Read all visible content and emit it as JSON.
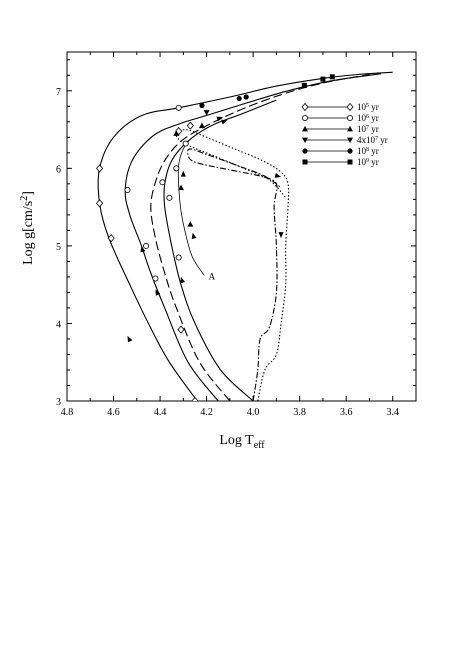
{
  "chart_data": {
    "type": "line",
    "title": "",
    "xlabel": "Log T",
    "xlabel_sub": "eff",
    "ylabel": "Log g[cm/s",
    "ylabel_sup": "2",
    "ylabel_end": "]",
    "xlim": [
      4.8,
      3.3
    ],
    "ylim": [
      3.0,
      7.5
    ],
    "xticks": [
      4.8,
      4.6,
      4.4,
      4.2,
      4.0,
      3.8,
      3.6,
      3.4
    ],
    "xtick_labels": [
      "4.8",
      "4.6",
      "4.4",
      "4.2",
      "4.0",
      "3.8",
      "3.6",
      "3.4"
    ],
    "yticks": [
      3,
      4,
      5,
      6,
      7
    ],
    "ytick_labels": [
      "3",
      "4",
      "5",
      "6",
      "7"
    ],
    "legend_position": "top-right",
    "legend": [
      {
        "base": "10",
        "sup": "5",
        "unit": " yr",
        "marker": "diamond-open"
      },
      {
        "base": "10",
        "sup": "6",
        "unit": " yr",
        "marker": "circle-open"
      },
      {
        "base": "10",
        "sup": "7",
        "unit": " yr",
        "marker": "triangle-up"
      },
      {
        "base": "4x10",
        "sup": "7",
        "unit": " yr",
        "marker": "triangle-down"
      },
      {
        "base": "10",
        "sup": "8",
        "unit": " yr",
        "marker": "circle-filled"
      },
      {
        "base": "10",
        "sup": "9",
        "unit": " yr",
        "marker": "square-filled"
      }
    ],
    "annotations": [
      {
        "text": "A",
        "x": 4.2,
        "y": 4.62
      }
    ],
    "series": [
      {
        "style": "solid",
        "points": [
          [
            4.24,
            3.0
          ],
          [
            4.36,
            3.5
          ],
          [
            4.45,
            4.0
          ],
          [
            4.53,
            4.5
          ],
          [
            4.62,
            5.1
          ],
          [
            4.66,
            5.55
          ],
          [
            4.66,
            6.0
          ],
          [
            4.6,
            6.4
          ],
          [
            4.48,
            6.68
          ],
          [
            4.32,
            6.78
          ],
          [
            4.1,
            6.92
          ],
          [
            3.9,
            7.06
          ],
          [
            3.7,
            7.16
          ],
          [
            3.55,
            7.21
          ],
          [
            3.4,
            7.24
          ]
        ]
      },
      {
        "style": "solid",
        "points": [
          [
            4.15,
            3.0
          ],
          [
            4.28,
            3.5
          ],
          [
            4.38,
            4.2
          ],
          [
            4.44,
            4.65
          ],
          [
            4.48,
            5.0
          ],
          [
            4.53,
            5.4
          ],
          [
            4.55,
            5.72
          ],
          [
            4.52,
            6.1
          ],
          [
            4.43,
            6.42
          ],
          [
            4.32,
            6.57
          ],
          [
            4.18,
            6.7
          ],
          [
            4.02,
            6.85
          ],
          [
            3.85,
            7.0
          ],
          [
            3.66,
            7.13
          ],
          [
            3.45,
            7.22
          ]
        ]
      },
      {
        "style": "long-dash",
        "points": [
          [
            4.1,
            3.0
          ],
          [
            4.23,
            3.5
          ],
          [
            4.33,
            4.2
          ],
          [
            4.38,
            4.65
          ],
          [
            4.42,
            5.1
          ],
          [
            4.44,
            5.5
          ],
          [
            4.42,
            5.82
          ],
          [
            4.38,
            6.1
          ],
          [
            4.31,
            6.35
          ],
          [
            4.2,
            6.55
          ],
          [
            4.05,
            6.76
          ],
          [
            3.88,
            6.95
          ],
          [
            3.7,
            7.1
          ],
          [
            3.5,
            7.21
          ]
        ]
      },
      {
        "style": "solid",
        "points": [
          [
            4.0,
            3.0
          ],
          [
            4.14,
            3.4
          ],
          [
            4.25,
            4.0
          ],
          [
            4.31,
            4.5
          ],
          [
            4.35,
            5.0
          ],
          [
            4.38,
            5.5
          ],
          [
            4.38,
            5.8
          ],
          [
            4.35,
            6.1
          ],
          [
            4.28,
            6.35
          ],
          [
            4.18,
            6.55
          ],
          [
            4.05,
            6.7
          ],
          [
            3.9,
            6.88
          ]
        ]
      },
      {
        "style": "dash-dot",
        "points": [
          [
            4.0,
            3.0
          ],
          [
            3.98,
            3.4
          ],
          [
            3.97,
            3.8
          ],
          [
            3.93,
            3.95
          ],
          [
            3.9,
            4.4
          ],
          [
            3.9,
            5.0
          ],
          [
            3.91,
            5.5
          ],
          [
            3.9,
            5.8
          ],
          [
            3.97,
            5.9
          ],
          [
            4.1,
            5.98
          ],
          [
            4.25,
            6.08
          ],
          [
            4.28,
            6.18
          ],
          [
            4.27,
            6.25
          ],
          [
            4.2,
            6.18
          ],
          [
            4.08,
            6.05
          ],
          [
            3.95,
            5.9
          ],
          [
            3.88,
            5.75
          ]
        ]
      },
      {
        "style": "dotted",
        "points": [
          [
            3.98,
            3.0
          ],
          [
            3.95,
            3.4
          ],
          [
            3.9,
            3.6
          ],
          [
            3.88,
            4.0
          ],
          [
            3.86,
            4.5
          ],
          [
            3.86,
            5.0
          ],
          [
            3.85,
            5.5
          ],
          [
            3.85,
            5.8
          ],
          [
            3.88,
            5.95
          ],
          [
            3.96,
            6.1
          ],
          [
            4.08,
            6.25
          ],
          [
            4.2,
            6.4
          ],
          [
            4.29,
            6.5
          ],
          [
            4.33,
            6.42
          ],
          [
            4.28,
            6.3
          ],
          [
            4.16,
            6.15
          ],
          [
            4.04,
            6.0
          ],
          [
            3.93,
            5.85
          ],
          [
            3.86,
            5.62
          ]
        ]
      },
      {
        "style": "solid-thin",
        "points": [
          [
            4.21,
            4.62
          ],
          [
            4.26,
            4.85
          ],
          [
            4.29,
            5.15
          ],
          [
            4.31,
            5.45
          ],
          [
            4.32,
            5.78
          ],
          [
            4.32,
            6.05
          ],
          [
            4.3,
            6.25
          ],
          [
            4.27,
            6.38
          ]
        ]
      }
    ],
    "markers": [
      {
        "type": "diamond-open",
        "points": [
          [
            4.66,
            6.0
          ],
          [
            4.66,
            5.55
          ],
          [
            4.61,
            5.1
          ],
          [
            4.27,
            6.55
          ],
          [
            4.32,
            6.48
          ],
          [
            4.25,
            3.0
          ],
          [
            4.31,
            3.92
          ]
        ]
      },
      {
        "type": "circle-open",
        "points": [
          [
            4.54,
            5.72
          ],
          [
            4.46,
            5.0
          ],
          [
            4.42,
            4.58
          ],
          [
            4.39,
            5.82
          ],
          [
            4.36,
            5.62
          ],
          [
            4.33,
            6.0
          ],
          [
            4.32,
            4.85
          ],
          [
            4.32,
            6.78
          ],
          [
            4.29,
            6.32
          ]
        ]
      },
      {
        "type": "triangle-up",
        "points": [
          [
            4.31,
            5.75
          ],
          [
            4.27,
            5.28
          ],
          [
            4.33,
            6.45
          ],
          [
            4.22,
            6.55
          ]
        ]
      },
      {
        "type": "triangle-down",
        "points": [
          [
            4.2,
            6.72
          ]
        ]
      },
      {
        "type": "circle-filled",
        "points": [
          [
            4.22,
            6.81
          ],
          [
            4.06,
            6.9
          ],
          [
            4.03,
            6.92
          ]
        ]
      },
      {
        "type": "square-filled",
        "points": [
          [
            3.78,
            7.07
          ],
          [
            3.7,
            7.15
          ],
          [
            3.66,
            7.18
          ]
        ]
      }
    ],
    "arrows": [
      {
        "x": 4.4,
        "y": 4.32,
        "dx": 0.02,
        "dy": 0.12
      },
      {
        "x": 4.47,
        "y": 4.88,
        "dx": 0.01,
        "dy": 0.12
      },
      {
        "x": 4.3,
        "y": 4.5,
        "dx": 0.01,
        "dy": 0.1
      },
      {
        "x": 4.52,
        "y": 3.72,
        "dx": 0.02,
        "dy": 0.12
      },
      {
        "x": 4.3,
        "y": 5.85,
        "dx": 0.0,
        "dy": 0.12
      },
      {
        "x": 4.25,
        "y": 5.05,
        "dx": 0.01,
        "dy": 0.12
      },
      {
        "x": 3.88,
        "y": 5.25,
        "dx": 0.0,
        "dy": -0.15
      },
      {
        "x": 3.96,
        "y": 5.95,
        "dx": -0.08,
        "dy": -0.06
      },
      {
        "x": 4.17,
        "y": 6.62,
        "dx": -0.04,
        "dy": 0.04
      },
      {
        "x": 4.15,
        "y": 6.58,
        "dx": -0.04,
        "dy": 0.04
      }
    ]
  }
}
